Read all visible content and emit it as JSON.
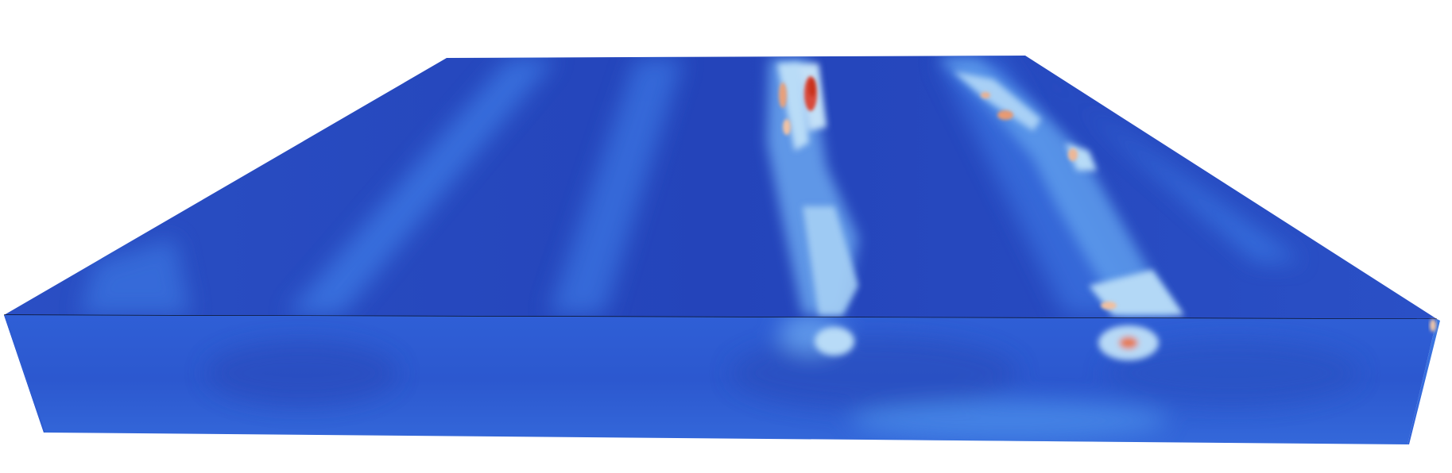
{
  "scene": {
    "background_color": "#ffffff",
    "colormap": {
      "low": "#2242b8",
      "mid_low": "#3b78e0",
      "mid": "#a8d4f5",
      "mid_high": "#f2c7a5",
      "high": "#d23a22"
    },
    "edge_color": "#000000"
  }
}
